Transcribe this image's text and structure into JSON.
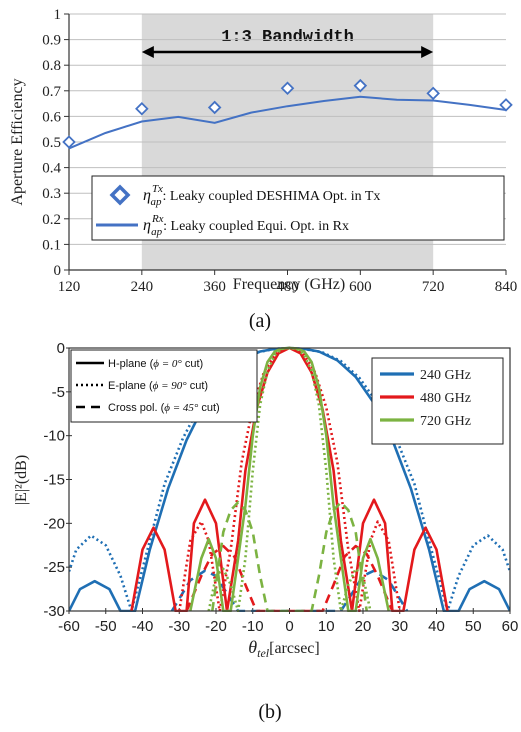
{
  "chart_data": [
    {
      "type": "line",
      "panel_label": "(a)",
      "xlabel": "Frequency (GHz)",
      "ylabel": "Aperture Efficiency",
      "xlim": [
        120,
        840
      ],
      "ylim": [
        0,
        1
      ],
      "xticks": [
        "120",
        "240",
        "360",
        "480",
        "600",
        "720",
        "840"
      ],
      "yticks": [
        "0",
        "0.1",
        "0.2",
        "0.3",
        "0.4",
        "0.5",
        "0.6",
        "0.7",
        "0.8",
        "0.9",
        "1"
      ],
      "band": {
        "x": [
          240,
          720
        ],
        "label": "1:3 Bandwidth"
      },
      "series": [
        {
          "name": "Leaky coupled DESHIMA Opt. in Tx",
          "legend_math": "η",
          "legend_sub": "ap",
          "legend_sup": "Tx",
          "marker": "diamond",
          "color": "#4472c4",
          "x": [
            120,
            240,
            360,
            480,
            600,
            720,
            840
          ],
          "y": [
            0.5,
            0.63,
            0.635,
            0.71,
            0.72,
            0.69,
            0.645
          ]
        },
        {
          "name": "Leaky coupled Equi. Opt. in Rx",
          "legend_math": "η",
          "legend_sub": "ap",
          "legend_sup": "Rx",
          "marker": "line",
          "color": "#4472c4",
          "x": [
            120,
            180,
            240,
            300,
            360,
            420,
            480,
            540,
            600,
            660,
            720,
            780,
            840
          ],
          "y": [
            0.475,
            0.535,
            0.58,
            0.598,
            0.575,
            0.615,
            0.64,
            0.66,
            0.677,
            0.665,
            0.662,
            0.645,
            0.625
          ]
        }
      ]
    },
    {
      "type": "line",
      "panel_label": "(b)",
      "xlabel": "θtel[arcsec]",
      "xlabel_sym": "θ",
      "xlabel_sub": "tel",
      "xlabel_unit": "[arcsec]",
      "ylabel": "|E|²(dB)",
      "xlim": [
        -60,
        60
      ],
      "ylim": [
        -30,
        0
      ],
      "xticks": [
        "-60",
        "-50",
        "-40",
        "-30",
        "-20",
        "-10",
        "0",
        "10",
        "20",
        "30",
        "40",
        "50",
        "60"
      ],
      "yticks": [
        "0",
        "-5",
        "-10",
        "-15",
        "-20",
        "-25",
        "-30"
      ],
      "style_legend": [
        {
          "label": "H-plane (",
          "sym": "ϕ = 0°",
          "tail": " cut)",
          "dash": "solid"
        },
        {
          "label": "E-plane (",
          "sym": "ϕ = 90°",
          "tail": " cut)",
          "dash": "dotted"
        },
        {
          "label": "Cross pol. (",
          "sym": "ϕ = 45°",
          "tail": " cut)",
          "dash": "dashed"
        }
      ],
      "series": [
        {
          "name": "240 GHz",
          "color": "#1f6fb4",
          "hplane": {
            "x": [
              -60,
              -57,
              -53,
              -49,
              -46,
              -42,
              -38,
              -33,
              -28,
              -23,
              -18,
              -13,
              -8,
              -4,
              0,
              4,
              8,
              13,
              18,
              23,
              28,
              33,
              38,
              42,
              46,
              49,
              53,
              57,
              60
            ],
            "y": [
              -30,
              -27.5,
              -26.6,
              -27.5,
              -30,
              -30,
              -23,
              -16,
              -10.5,
              -6.3,
              -3.3,
              -1.4,
              -0.4,
              -0.1,
              0,
              -0.1,
              -0.4,
              -1.4,
              -3.3,
              -6.3,
              -10.5,
              -16,
              -23,
              -30,
              -30,
              -27.5,
              -26.6,
              -27.5,
              -30
            ]
          },
          "eplane": {
            "x": [
              -60,
              -58,
              -54,
              -50,
              -46,
              -43,
              -38,
              -34,
              -29,
              -24,
              -19,
              -14,
              -9,
              -4,
              0,
              4,
              9,
              14,
              19,
              24,
              29,
              34,
              38,
              43,
              46,
              50,
              54,
              58,
              60
            ],
            "y": [
              -25.5,
              -23,
              -21.4,
              -22.5,
              -26,
              -30,
              -22,
              -15.5,
              -10.3,
              -6.3,
              -3.4,
              -1.5,
              -0.5,
              -0.1,
              0,
              -0.1,
              -0.5,
              -1.5,
              -3.4,
              -6.3,
              -10.3,
              -15.5,
              -22,
              -30,
              -26,
              -22.5,
              -21.4,
              -23,
              -25.5
            ]
          },
          "cross": {
            "x": [
              -32,
              -27,
              -23,
              -20,
              -17,
              -14,
              0,
              14,
              17,
              20,
              23,
              27,
              32
            ],
            "y": [
              -30,
              -26.5,
              -25.4,
              -26,
              -28,
              -30,
              -30,
              -30,
              -28,
              -26,
              -25.4,
              -26.5,
              -30
            ]
          }
        },
        {
          "name": "480 GHz",
          "color": "#e3191c",
          "hplane": {
            "x": [
              -43,
              -40,
              -37,
              -34,
              -31,
              -28,
              -26,
              -23,
              -20,
              -17,
              -14,
              -12,
              -9,
              -6,
              -3,
              0,
              3,
              6,
              9,
              12,
              14,
              17,
              20,
              23,
              26,
              28,
              31,
              34,
              37,
              40,
              43
            ],
            "y": [
              -30,
              -23,
              -20.5,
              -23,
              -30,
              -30,
              -20,
              -17.3,
              -20,
              -30,
              -22,
              -14,
              -7,
              -2.8,
              -0.6,
              0,
              -0.6,
              -2.8,
              -7,
              -14,
              -22,
              -30,
              -20,
              -17.3,
              -20,
              -30,
              -30,
              -23,
              -20.5,
              -23,
              -30
            ]
          },
          "eplane": {
            "x": [
              -30,
              -27,
              -24,
              -22,
              -19,
              -16,
              -13,
              -10,
              -7,
              -4,
              -2,
              0,
              2,
              4,
              7,
              10,
              13,
              16,
              19,
              22,
              24,
              27,
              30
            ],
            "y": [
              -30,
              -22,
              -19.8,
              -22,
              -30,
              -23,
              -13,
              -6.8,
              -2.8,
              -0.8,
              -0.2,
              0,
              -0.2,
              -0.8,
              -2.8,
              -6.8,
              -13,
              -23,
              -30,
              -22,
              -19.8,
              -22,
              -30
            ]
          },
          "cross": {
            "x": [
              -28,
              -24,
              -21,
              -18,
              -15,
              -12,
              -9,
              -7,
              0,
              7,
              9,
              12,
              15,
              18,
              21,
              24,
              28
            ],
            "y": [
              -30,
              -26,
              -23.5,
              -22.6,
              -23.8,
              -27,
              -30,
              -30,
              -30,
              -30,
              -30,
              -27,
              -23.8,
              -22.6,
              -23.5,
              -26,
              -30
            ]
          }
        },
        {
          "name": "720 GHz",
          "color": "#7cb342",
          "hplane": {
            "x": [
              -27,
              -24,
              -22,
              -20,
              -18,
              -16,
              -14,
              -12,
              -10,
              -8,
              -6,
              -4,
              -2,
              0,
              2,
              4,
              6,
              8,
              10,
              12,
              14,
              16,
              18,
              20,
              22,
              24,
              27
            ],
            "y": [
              -30,
              -24,
              -21.8,
              -24,
              -30,
              -30,
              -24,
              -18,
              -10,
              -4.5,
              -1.6,
              -0.4,
              -0.05,
              0,
              -0.05,
              -0.4,
              -1.6,
              -4.5,
              -10,
              -18,
              -24,
              -30,
              -30,
              -24,
              -21.8,
              -24,
              -30
            ]
          },
          "eplane": {
            "x": [
              -22,
              -20,
              -18,
              -16,
              -14,
              -12,
              -10,
              -8,
              -6,
              -4,
              -2,
              0,
              2,
              4,
              6,
              8,
              10,
              12,
              14,
              16,
              18,
              20,
              22
            ],
            "y": [
              -30,
              -26,
              -25.2,
              -27,
              -30,
              -24,
              -14,
              -6.5,
              -2.6,
              -0.8,
              -0.1,
              0,
              -0.1,
              -0.8,
              -2.6,
              -6.5,
              -14,
              -24,
              -30,
              -27,
              -25.2,
              -26,
              -30
            ]
          },
          "cross": {
            "x": [
              -21,
              -18,
              -16,
              -14,
              -12,
              -10,
              -8,
              -6,
              -4,
              0,
              4,
              6,
              8,
              10,
              12,
              14,
              16,
              18,
              21
            ],
            "y": [
              -30,
              -21,
              -18.5,
              -17.6,
              -18.5,
              -21,
              -26,
              -30,
              -30,
              -30,
              -30,
              -30,
              -26,
              -21,
              -18.5,
              -17.6,
              -18.5,
              -21,
              -30
            ]
          }
        }
      ]
    }
  ]
}
